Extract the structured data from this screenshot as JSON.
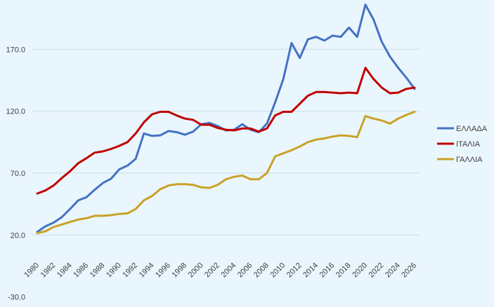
{
  "chart_data": {
    "type": "line",
    "title": "",
    "xlabel": "",
    "ylabel": "",
    "ylim": [
      -30,
      210
    ],
    "yticks": [
      "20.0",
      "70.0",
      "120.0",
      "170.0",
      "-30.0"
    ],
    "ytick_values": [
      20,
      70,
      120,
      170,
      -30
    ],
    "x": [
      1980,
      1981,
      1982,
      1983,
      1984,
      1985,
      1986,
      1987,
      1988,
      1989,
      1990,
      1991,
      1992,
      1993,
      1994,
      1995,
      1996,
      1997,
      1998,
      1999,
      2000,
      2001,
      2002,
      2003,
      2004,
      2005,
      2006,
      2007,
      2008,
      2009,
      2010,
      2011,
      2012,
      2013,
      2014,
      2015,
      2016,
      2017,
      2018,
      2019,
      2020,
      2021,
      2022,
      2023,
      2024,
      2025,
      2026
    ],
    "xtick_labels": [
      "1980",
      "1982",
      "1984",
      "1986",
      "1988",
      "1990",
      "1992",
      "1994",
      "1996",
      "1998",
      "2000",
      "2002",
      "2004",
      "2006",
      "2008",
      "2010",
      "2012",
      "2014",
      "2016",
      "2018",
      "2020",
      "2022",
      "2024",
      "2026"
    ],
    "grid": "horizontal",
    "legend_position": "right",
    "series": [
      {
        "name": "ΕΛΛΑΔΑ",
        "color": "#4472c4",
        "values": [
          22.5,
          27,
          30,
          34.5,
          41,
          48,
          50.5,
          56.5,
          62,
          65.5,
          73,
          76,
          81.5,
          102,
          100,
          100.5,
          104,
          103,
          101,
          103.5,
          109.5,
          110.5,
          108,
          104.5,
          105,
          109.5,
          105,
          103,
          110,
          127,
          146,
          175,
          163,
          178,
          180,
          177,
          181,
          180,
          187.5,
          180,
          206,
          194,
          176,
          164,
          155,
          147,
          138
        ]
      },
      {
        "name": "ΙΤΑΛΙΑ",
        "color": "#c00000",
        "values": [
          53.5,
          56,
          60,
          66,
          71.5,
          78,
          82,
          86.5,
          87.5,
          89.5,
          92,
          95,
          102,
          111,
          117.5,
          119.5,
          119.5,
          116.5,
          114,
          113,
          109,
          109,
          106.5,
          105,
          104.5,
          106,
          106,
          103.5,
          106,
          116.5,
          119.5,
          119.5,
          126,
          132.5,
          135.5,
          135.5,
          135,
          134.5,
          135,
          134.5,
          155,
          146,
          139,
          134.5,
          135,
          138,
          139
        ]
      },
      {
        "name": "ΓΑΛΛΙΑ",
        "color": "#c9a227",
        "values": [
          21.5,
          23,
          26.5,
          28.5,
          30.5,
          32.5,
          33.5,
          35.5,
          35.5,
          36,
          37,
          37.5,
          41,
          48,
          51.5,
          57,
          60,
          61,
          61,
          60.5,
          58.5,
          58,
          60.5,
          65,
          67,
          68,
          65,
          65,
          70,
          83.5,
          86,
          88.5,
          91.5,
          95,
          97,
          98,
          99.5,
          100.5,
          100,
          99,
          116,
          114,
          112.5,
          110,
          114,
          117,
          119.5
        ]
      }
    ]
  }
}
